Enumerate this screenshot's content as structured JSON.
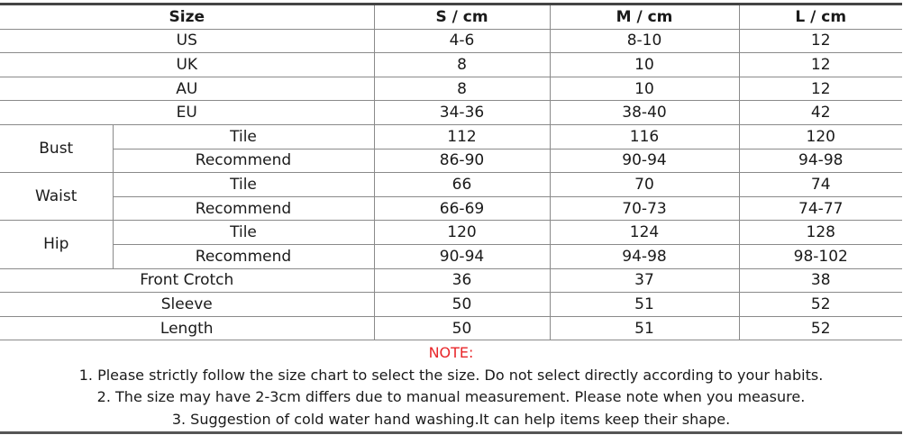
{
  "header": {
    "label": "Size",
    "sizes": [
      "S / cm",
      "M / cm",
      "L / cm"
    ]
  },
  "simple_rows_top": [
    {
      "label": "US",
      "values": [
        "4-6",
        "8-10",
        "12"
      ]
    },
    {
      "label": "UK",
      "values": [
        "8",
        "10",
        "12"
      ]
    },
    {
      "label": "AU",
      "values": [
        "8",
        "10",
        "12"
      ]
    },
    {
      "label": "EU",
      "values": [
        "34-36",
        "38-40",
        "42"
      ]
    }
  ],
  "groups": [
    {
      "label": "Bust",
      "rows": [
        {
          "label": "Tile",
          "values": [
            "112",
            "116",
            "120"
          ]
        },
        {
          "label": "Recommend",
          "values": [
            "86-90",
            "90-94",
            "94-98"
          ]
        }
      ]
    },
    {
      "label": "Waist",
      "rows": [
        {
          "label": "Tile",
          "values": [
            "66",
            "70",
            "74"
          ]
        },
        {
          "label": "Recommend",
          "values": [
            "66-69",
            "70-73",
            "74-77"
          ]
        }
      ]
    },
    {
      "label": "Hip",
      "rows": [
        {
          "label": "Tile",
          "values": [
            "120",
            "124",
            "128"
          ]
        },
        {
          "label": "Recommend",
          "values": [
            "90-94",
            "94-98",
            "98-102"
          ]
        }
      ]
    }
  ],
  "simple_rows_bottom": [
    {
      "label": "Front Crotch",
      "values": [
        "36",
        "37",
        "38"
      ]
    },
    {
      "label": "Sleeve",
      "values": [
        "50",
        "51",
        "52"
      ]
    },
    {
      "label": "Length",
      "values": [
        "50",
        "51",
        "52"
      ]
    }
  ],
  "notes": {
    "title": "NOTE:",
    "lines": [
      "1. Please strictly follow the size chart  to select the size. Do not select directly according to your habits.",
      "2. The size may have 2-3cm differs due to manual measurement. Please note when you measure.",
      "3. Suggestion of cold water hand washing.It can help items keep their shape."
    ]
  },
  "colors": {
    "note_title": "#e8262a",
    "border": "#8a8a8a"
  }
}
